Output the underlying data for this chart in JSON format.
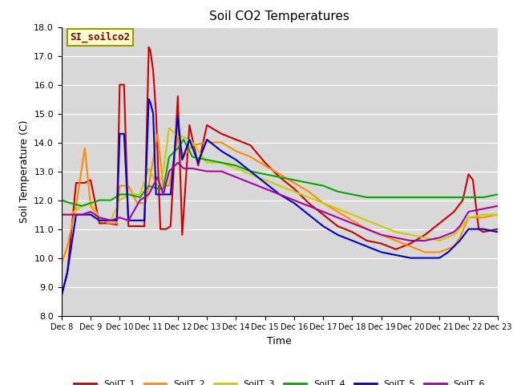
{
  "title": "Soil CO2 Temperatures",
  "xlabel": "Time",
  "ylabel": "Soil Temperature (C)",
  "ylim": [
    8.0,
    18.0
  ],
  "yticks": [
    8.0,
    9.0,
    10.0,
    11.0,
    12.0,
    13.0,
    14.0,
    15.0,
    16.0,
    17.0,
    18.0
  ],
  "annotation": "SI_soilco2",
  "plot_background": "#d8d8d8",
  "series": {
    "SoilT_1": {
      "color": "#cc0000",
      "days": [
        8,
        8.2,
        8.5,
        8.8,
        9.0,
        9.3,
        9.6,
        9.9,
        10.0,
        10.15,
        10.3,
        10.6,
        10.85,
        11.0,
        11.05,
        11.15,
        11.25,
        11.4,
        11.6,
        11.75,
        12.0,
        12.15,
        12.4,
        12.7,
        13.0,
        13.5,
        14.0,
        14.5,
        15.0,
        15.5,
        16.0,
        16.5,
        17.0,
        17.5,
        18.0,
        18.5,
        19.0,
        19.5,
        20.0,
        20.5,
        21.0,
        21.5,
        21.65,
        21.8,
        22.0,
        22.15,
        22.35,
        22.5,
        23.0
      ],
      "values": [
        8.7,
        9.5,
        12.6,
        12.6,
        12.7,
        11.2,
        11.2,
        11.15,
        16.0,
        16.0,
        11.1,
        11.1,
        11.1,
        17.3,
        17.2,
        16.5,
        15.0,
        11.0,
        11.0,
        11.1,
        15.6,
        10.8,
        14.6,
        13.2,
        14.6,
        14.3,
        14.1,
        13.9,
        13.3,
        12.8,
        12.4,
        11.9,
        11.5,
        11.1,
        10.9,
        10.6,
        10.5,
        10.3,
        10.5,
        10.8,
        11.2,
        11.6,
        11.8,
        12.0,
        12.9,
        12.7,
        11.0,
        10.9,
        11.0
      ]
    },
    "SoilT_2": {
      "color": "#ff8c00",
      "days": [
        8,
        8.2,
        8.5,
        8.8,
        9.0,
        9.3,
        9.6,
        9.9,
        10.0,
        10.3,
        10.6,
        10.9,
        11.0,
        11.3,
        11.5,
        11.7,
        12.0,
        12.2,
        12.5,
        13.0,
        13.5,
        14.0,
        14.5,
        15.0,
        15.5,
        16.0,
        16.5,
        17.0,
        17.5,
        18.0,
        18.5,
        19.0,
        19.5,
        20.0,
        20.5,
        21.0,
        21.5,
        21.7,
        22.0,
        22.5,
        23.0
      ],
      "values": [
        9.8,
        10.4,
        11.8,
        13.8,
        11.8,
        11.4,
        11.2,
        11.2,
        12.5,
        12.5,
        11.9,
        11.9,
        12.5,
        14.3,
        12.5,
        12.5,
        14.2,
        13.5,
        13.9,
        14.0,
        14.0,
        13.7,
        13.5,
        13.2,
        12.9,
        12.6,
        12.3,
        11.9,
        11.6,
        11.3,
        11.0,
        10.8,
        10.6,
        10.4,
        10.2,
        10.2,
        10.4,
        10.7,
        11.4,
        11.4,
        11.5
      ]
    },
    "SoilT_3": {
      "color": "#cccc00",
      "days": [
        8,
        8.3,
        8.7,
        9.0,
        9.3,
        9.7,
        10.0,
        10.3,
        10.7,
        11.0,
        11.3,
        11.5,
        11.7,
        12.0,
        12.2,
        12.5,
        13.0,
        13.5,
        14.0,
        14.5,
        15.0,
        15.5,
        16.0,
        16.5,
        17.0,
        17.5,
        18.0,
        18.5,
        19.0,
        19.5,
        20.0,
        20.5,
        21.0,
        21.5,
        21.7,
        22.0,
        22.5,
        23.0
      ],
      "values": [
        11.5,
        11.5,
        11.8,
        11.9,
        11.4,
        11.3,
        12.0,
        12.2,
        12.2,
        13.1,
        12.5,
        13.0,
        14.5,
        14.2,
        14.2,
        14.0,
        13.3,
        13.3,
        13.1,
        12.9,
        12.7,
        12.5,
        12.3,
        12.1,
        11.9,
        11.7,
        11.5,
        11.3,
        11.1,
        10.9,
        10.8,
        10.7,
        10.6,
        10.8,
        11.0,
        11.4,
        11.5,
        11.5
      ]
    },
    "SoilT_4": {
      "color": "#00aa00",
      "days": [
        8,
        8.3,
        8.7,
        9.0,
        9.3,
        9.7,
        10.0,
        10.3,
        10.7,
        11.0,
        11.3,
        11.5,
        11.7,
        12.0,
        12.2,
        12.5,
        13.0,
        13.5,
        14.0,
        14.5,
        15.0,
        15.5,
        16.0,
        16.5,
        17.0,
        17.5,
        18.0,
        18.5,
        19.0,
        19.5,
        20.0,
        20.5,
        21.0,
        21.5,
        22.0,
        22.5,
        23.0
      ],
      "values": [
        12.0,
        11.9,
        11.8,
        11.9,
        12.0,
        12.0,
        12.2,
        12.2,
        12.1,
        12.5,
        12.4,
        12.4,
        13.5,
        13.8,
        14.1,
        13.5,
        13.4,
        13.3,
        13.2,
        13.0,
        12.9,
        12.8,
        12.7,
        12.6,
        12.5,
        12.3,
        12.2,
        12.1,
        12.1,
        12.1,
        12.1,
        12.1,
        12.1,
        12.1,
        12.1,
        12.1,
        12.2
      ]
    },
    "SoilT_5": {
      "color": "#0000cc",
      "days": [
        8,
        8.2,
        8.5,
        8.8,
        9.0,
        9.3,
        9.6,
        9.9,
        10.0,
        10.15,
        10.3,
        10.6,
        10.85,
        11.0,
        11.05,
        11.15,
        11.25,
        11.4,
        11.6,
        11.75,
        12.0,
        12.15,
        12.4,
        12.7,
        13.0,
        13.5,
        14.0,
        14.5,
        15.0,
        15.5,
        16.0,
        16.5,
        17.0,
        17.5,
        18.0,
        18.5,
        19.0,
        19.5,
        20.0,
        20.5,
        21.0,
        21.3,
        21.5,
        21.7,
        22.0,
        22.5,
        23.0
      ],
      "values": [
        8.7,
        9.5,
        11.5,
        11.5,
        11.5,
        11.3,
        11.3,
        11.3,
        14.3,
        14.3,
        11.3,
        11.3,
        11.3,
        15.5,
        15.4,
        15.0,
        12.2,
        12.2,
        12.2,
        12.2,
        14.9,
        13.4,
        14.1,
        13.3,
        14.1,
        13.7,
        13.4,
        13.0,
        12.6,
        12.2,
        11.9,
        11.5,
        11.1,
        10.8,
        10.6,
        10.4,
        10.2,
        10.1,
        10.0,
        10.0,
        10.0,
        10.2,
        10.4,
        10.6,
        11.0,
        11.0,
        10.9
      ]
    },
    "SoilT_6": {
      "color": "#aa00aa",
      "days": [
        8,
        8.3,
        8.7,
        9.0,
        9.3,
        9.7,
        10.0,
        10.3,
        10.7,
        11.0,
        11.3,
        11.5,
        11.7,
        12.0,
        12.2,
        12.5,
        13.0,
        13.5,
        14.0,
        14.5,
        15.0,
        15.5,
        16.0,
        16.5,
        17.0,
        17.5,
        18.0,
        18.5,
        19.0,
        19.5,
        20.0,
        20.5,
        21.0,
        21.5,
        21.7,
        22.0,
        22.5,
        23.0
      ],
      "values": [
        11.5,
        11.5,
        11.5,
        11.6,
        11.4,
        11.3,
        11.4,
        11.3,
        12.0,
        12.2,
        12.8,
        12.2,
        13.0,
        13.3,
        13.1,
        13.1,
        13.0,
        13.0,
        12.8,
        12.6,
        12.4,
        12.2,
        12.0,
        11.8,
        11.6,
        11.4,
        11.2,
        11.0,
        10.8,
        10.7,
        10.6,
        10.6,
        10.7,
        10.9,
        11.1,
        11.6,
        11.7,
        11.8
      ]
    }
  },
  "xtick_labels": [
    "Dec 8",
    "Dec 9",
    "Dec 10",
    "Dec 11",
    "Dec 12",
    "Dec 13",
    "Dec 14",
    "Dec 15",
    "Dec 16",
    "Dec 17",
    "Dec 18",
    "Dec 19",
    "Dec 20",
    "Dec 21",
    "Dec 22",
    "Dec 23"
  ],
  "xtick_days": [
    8,
    9,
    10,
    11,
    12,
    13,
    14,
    15,
    16,
    17,
    18,
    19,
    20,
    21,
    22,
    23
  ]
}
